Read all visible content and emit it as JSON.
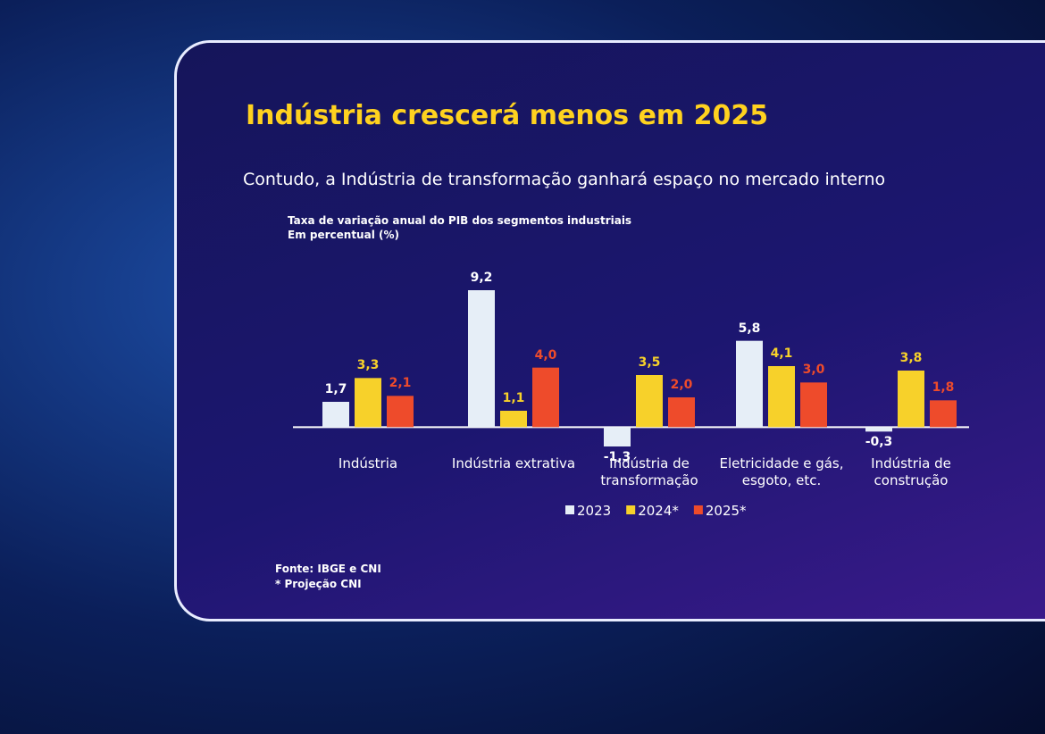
{
  "title": "Indústria crescerá menos em 2025",
  "subtitle": "Contudo, a Indústria de transformação ganhará espaço no mercado interno",
  "chart_data": {
    "type": "bar",
    "title": "Taxa de variação anual do PIB dos segmentos industriais",
    "subtitle": "Em percentual (%)",
    "categories": [
      "Indústria",
      "Indústria extrativa",
      "Indústria de transformação",
      "Eletricidade e gás, esgoto, etc.",
      "Indústria de construção"
    ],
    "series": [
      {
        "name": "2023",
        "color": "#e6eef7",
        "values": [
          1.7,
          9.2,
          -1.3,
          5.8,
          -0.3
        ],
        "value_labels": [
          "1,7",
          "9,2",
          "-1,3",
          "5,8",
          "-0,3"
        ]
      },
      {
        "name": "2024*",
        "color": "#f7d12a",
        "values": [
          3.3,
          1.1,
          3.5,
          4.1,
          3.8
        ],
        "value_labels": [
          "3,3",
          "1,1",
          "3,5",
          "4,1",
          "3,8"
        ]
      },
      {
        "name": "2025*",
        "color": "#ee4b2b",
        "values": [
          2.1,
          4.0,
          2.0,
          3.0,
          1.8
        ],
        "value_labels": [
          "2,1",
          "4,0",
          "2,0",
          "3,0",
          "1,8"
        ]
      }
    ],
    "legend": "bottom",
    "notes": [
      "Fonte: IBGE e CNI",
      "* Projeção CNI"
    ]
  }
}
